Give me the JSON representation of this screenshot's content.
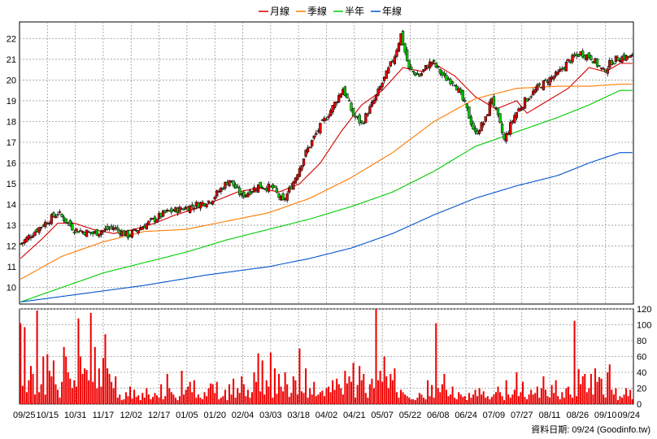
{
  "legend": [
    {
      "name": "月線",
      "color": "#d40000"
    },
    {
      "name": "季線",
      "color": "#ff7a00"
    },
    {
      "name": "半年",
      "color": "#00cc00"
    },
    {
      "name": "年線",
      "color": "#0055cc"
    }
  ],
  "footer": "資料日期: 09/24  (Goodinfo.tw)",
  "chart_data": [
    {
      "type": "candlestick",
      "ylim": [
        9.2,
        22.8
      ],
      "yticks": [
        10,
        11,
        12,
        13,
        14,
        15,
        16,
        17,
        18,
        19,
        20,
        21,
        22
      ],
      "grid": true,
      "legend_position": "top-center",
      "x_tick_labels": [
        "09/25",
        "10/15",
        "10/31",
        "11/17",
        "12/02",
        "12/17",
        "01/05",
        "01/20",
        "02/04",
        "03/03",
        "03/18",
        "04/02",
        "04/21",
        "05/07",
        "05/22",
        "06/08",
        "06/24",
        "07/09",
        "07/27",
        "08/11",
        "08/26",
        "09/10",
        "09/24"
      ],
      "close_anchors": [
        [
          0,
          12.1
        ],
        [
          8,
          12.8
        ],
        [
          18,
          13.6
        ],
        [
          26,
          12.8
        ],
        [
          35,
          12.6
        ],
        [
          45,
          12.9
        ],
        [
          52,
          12.5
        ],
        [
          60,
          13.0
        ],
        [
          70,
          13.6
        ],
        [
          82,
          13.9
        ],
        [
          92,
          14.2
        ],
        [
          101,
          15.2
        ],
        [
          107,
          14.4
        ],
        [
          115,
          14.9
        ],
        [
          122,
          14.8
        ],
        [
          127,
          14.1
        ],
        [
          132,
          15.1
        ],
        [
          138,
          16.5
        ],
        [
          144,
          17.6
        ],
        [
          151,
          18.7
        ],
        [
          156,
          19.6
        ],
        [
          161,
          18.3
        ],
        [
          165,
          17.9
        ],
        [
          171,
          19.0
        ],
        [
          178,
          20.5
        ],
        [
          181,
          21.2
        ],
        [
          184,
          22.2
        ],
        [
          188,
          20.5
        ],
        [
          193,
          20.2
        ],
        [
          196,
          20.6
        ],
        [
          199,
          20.9
        ],
        [
          205,
          20.1
        ],
        [
          210,
          19.9
        ],
        [
          215,
          18.8
        ],
        [
          220,
          17.4
        ],
        [
          225,
          18.1
        ],
        [
          228,
          19.2
        ],
        [
          234,
          17.1
        ],
        [
          239,
          18.3
        ],
        [
          244,
          19.0
        ],
        [
          250,
          19.6
        ],
        [
          255,
          20.0
        ],
        [
          260,
          20.3
        ],
        [
          265,
          20.9
        ],
        [
          271,
          21.3
        ],
        [
          276,
          21.1
        ],
        [
          282,
          20.4
        ],
        [
          286,
          20.9
        ],
        [
          290,
          21.1
        ]
      ],
      "series": [
        {
          "name": "月線",
          "anchors": [
            [
              0,
              11.4
            ],
            [
              10,
              12.3
            ],
            [
              18,
              13.1
            ],
            [
              26,
              13.1
            ],
            [
              35,
              12.8
            ],
            [
              45,
              12.6
            ],
            [
              55,
              12.8
            ],
            [
              65,
              13.1
            ],
            [
              75,
              13.5
            ],
            [
              85,
              13.8
            ],
            [
              95,
              14.2
            ],
            [
              105,
              14.6
            ],
            [
              115,
              14.8
            ],
            [
              125,
              14.6
            ],
            [
              135,
              15.0
            ],
            [
              145,
              16.0
            ],
            [
              155,
              17.5
            ],
            [
              165,
              18.8
            ],
            [
              175,
              19.5
            ],
            [
              185,
              20.6
            ],
            [
              195,
              20.4
            ],
            [
              200,
              20.8
            ],
            [
              205,
              20.5
            ],
            [
              210,
              20.2
            ],
            [
              220,
              19.2
            ],
            [
              230,
              18.6
            ],
            [
              240,
              19.0
            ],
            [
              245,
              18.4
            ],
            [
              255,
              19.0
            ],
            [
              265,
              19.6
            ],
            [
              275,
              20.6
            ],
            [
              283,
              20.4
            ],
            [
              290,
              20.8
            ]
          ]
        },
        {
          "name": "季線",
          "anchors": [
            [
              0,
              10.4
            ],
            [
              20,
              11.5
            ],
            [
              40,
              12.2
            ],
            [
              60,
              12.7
            ],
            [
              80,
              12.8
            ],
            [
              100,
              13.2
            ],
            [
              120,
              13.6
            ],
            [
              140,
              14.3
            ],
            [
              160,
              15.3
            ],
            [
              180,
              16.5
            ],
            [
              200,
              18.0
            ],
            [
              220,
              19.1
            ],
            [
              240,
              19.6
            ],
            [
              260,
              19.7
            ],
            [
              275,
              19.7
            ],
            [
              290,
              19.8
            ]
          ]
        },
        {
          "name": "半年",
          "anchors": [
            [
              0,
              9.3
            ],
            [
              20,
              10.0
            ],
            [
              40,
              10.7
            ],
            [
              60,
              11.2
            ],
            [
              80,
              11.7
            ],
            [
              100,
              12.3
            ],
            [
              120,
              12.8
            ],
            [
              140,
              13.3
            ],
            [
              160,
              13.9
            ],
            [
              180,
              14.6
            ],
            [
              200,
              15.6
            ],
            [
              220,
              16.8
            ],
            [
              240,
              17.5
            ],
            [
              260,
              18.2
            ],
            [
              275,
              18.8
            ],
            [
              290,
              19.5
            ]
          ]
        },
        {
          "name": "年線",
          "anchors": [
            [
              0,
              9.3
            ],
            [
              30,
              9.7
            ],
            [
              60,
              10.1
            ],
            [
              90,
              10.6
            ],
            [
              120,
              11.0
            ],
            [
              140,
              11.4
            ],
            [
              160,
              11.9
            ],
            [
              180,
              12.6
            ],
            [
              200,
              13.5
            ],
            [
              220,
              14.3
            ],
            [
              240,
              14.9
            ],
            [
              260,
              15.4
            ],
            [
              275,
              16.0
            ],
            [
              290,
              16.5
            ]
          ]
        }
      ]
    },
    {
      "type": "bar",
      "ylim": [
        0,
        120
      ],
      "yticks": [
        0,
        20,
        40,
        60,
        80,
        100,
        120
      ],
      "grid": true,
      "values": [
        102,
        23,
        97,
        15,
        30,
        48,
        38,
        12,
        118,
        15,
        25,
        60,
        12,
        63,
        42,
        35,
        55,
        25,
        18,
        8,
        28,
        72,
        60,
        40,
        32,
        20,
        30,
        22,
        108,
        60,
        38,
        45,
        43,
        30,
        115,
        28,
        72,
        20,
        45,
        22,
        58,
        88,
        45,
        38,
        28,
        20,
        35,
        8,
        12,
        5,
        6,
        15,
        10,
        22,
        7,
        18,
        9,
        11,
        5,
        14,
        8,
        20,
        12,
        6,
        9,
        14,
        11,
        8,
        25,
        6,
        10,
        38,
        20,
        15,
        12,
        8,
        5,
        10,
        42,
        12,
        18,
        22,
        28,
        15,
        30,
        8,
        12,
        8,
        6,
        15,
        10,
        20,
        26,
        25,
        14,
        28,
        6,
        8,
        10,
        18,
        5,
        25,
        12,
        32,
        8,
        20,
        14,
        35,
        25,
        10,
        18,
        8,
        15,
        40,
        28,
        64,
        16,
        55,
        12,
        30,
        22,
        65,
        8,
        45,
        13,
        38,
        22,
        16,
        40,
        25,
        9,
        14,
        35,
        30,
        12,
        70,
        16,
        14,
        45,
        8,
        20,
        12,
        28,
        10,
        12,
        15,
        17,
        10,
        20,
        22,
        15,
        30,
        18,
        32,
        25,
        20,
        12,
        42,
        26,
        35,
        28,
        52,
        8,
        24,
        48,
        30,
        38,
        14,
        8,
        25,
        32,
        20,
        120,
        30,
        42,
        28,
        60,
        35,
        20,
        38,
        30,
        45,
        15,
        8,
        18,
        15,
        12,
        10,
        8,
        6,
        6,
        5,
        8,
        14,
        12,
        8,
        6,
        30,
        10,
        24,
        8,
        102,
        20,
        15,
        25,
        38,
        18,
        10,
        12,
        22,
        8,
        6,
        15,
        12,
        9,
        10,
        5,
        14,
        8,
        12,
        18,
        10,
        20,
        12,
        16,
        8,
        10,
        6,
        9,
        12,
        15,
        22,
        15,
        10,
        5,
        30,
        12,
        8,
        12,
        18,
        40,
        10,
        15,
        28,
        9,
        6,
        12,
        18,
        12,
        14,
        22,
        8,
        20,
        35,
        18,
        10,
        8,
        24,
        14,
        30,
        10,
        6,
        15,
        8,
        20,
        22,
        12,
        8,
        105,
        10,
        44,
        25,
        35,
        38,
        15,
        20,
        38,
        12,
        45,
        28,
        34,
        32,
        12,
        8,
        40,
        50,
        18,
        12,
        20,
        5,
        10,
        8,
        12,
        20,
        10,
        18,
        6
      ]
    }
  ]
}
